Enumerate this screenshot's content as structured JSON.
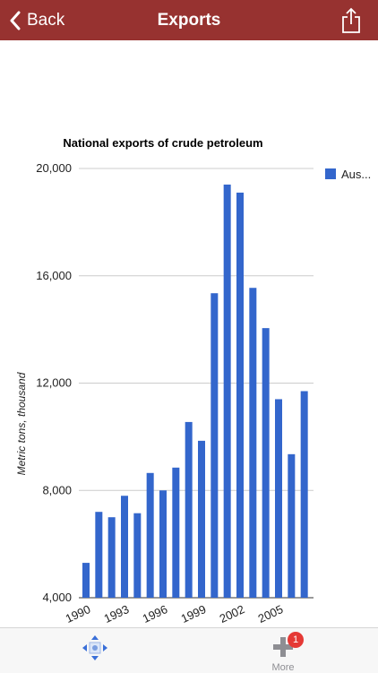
{
  "navbar": {
    "back_label": "Back",
    "title": "Exports"
  },
  "icons": {
    "back": "chevron-left-icon",
    "share": "share-icon",
    "move": "move-arrows-icon",
    "more": "plus-icon"
  },
  "toolbar": {
    "more_label": "More",
    "more_badge": "1"
  },
  "colors": {
    "navbar": "#973230",
    "bar": "#3366cc",
    "badge": "#e53935"
  },
  "chart_data": {
    "type": "bar",
    "title": "National exports of crude petroleum",
    "ylabel": "Metric tons, thousand",
    "xlabel": "",
    "ylim": [
      4000,
      20000
    ],
    "yticks": [
      4000,
      8000,
      12000,
      16000,
      20000
    ],
    "ytick_labels": [
      "4,000",
      "8,000",
      "12,000",
      "16,000",
      "20,000"
    ],
    "xtick_labels": [
      "1990",
      "1993",
      "1996",
      "1999",
      "2002",
      "2005"
    ],
    "categories": [
      "1990",
      "1991",
      "1992",
      "1993",
      "1994",
      "1995",
      "1996",
      "1997",
      "1998",
      "1999",
      "2000",
      "2001",
      "2002",
      "2003",
      "2004",
      "2005",
      "2006",
      "2007"
    ],
    "series": [
      {
        "name": "Aus...",
        "values": [
          5300,
          7200,
          7000,
          7800,
          7150,
          8650,
          8000,
          8850,
          10550,
          9850,
          15350,
          19400,
          19100,
          15550,
          14050,
          11400,
          9350,
          11700
        ]
      }
    ],
    "legend": "right",
    "grid": true
  }
}
